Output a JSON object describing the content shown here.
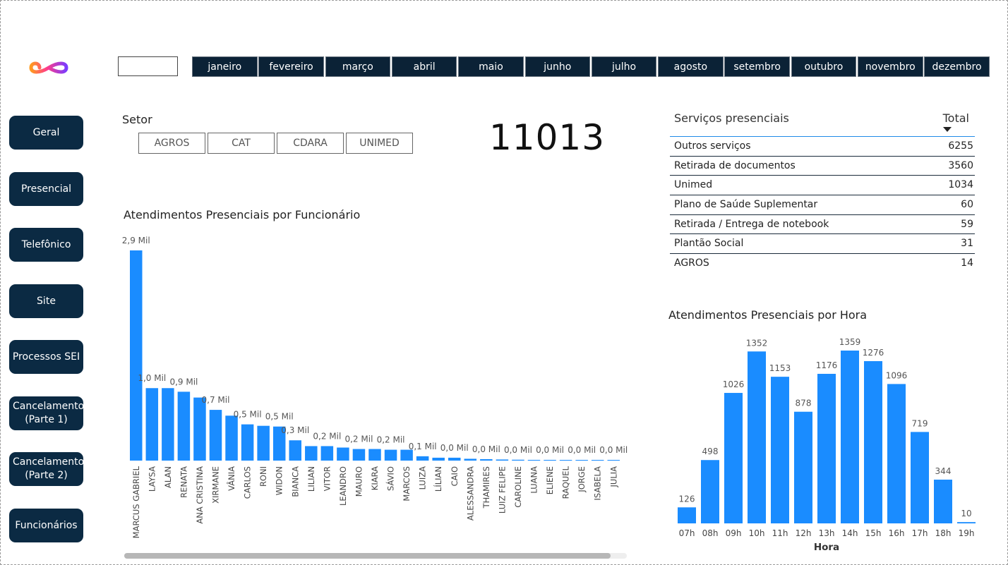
{
  "months": [
    "janeiro",
    "fevereiro",
    "março",
    "abril",
    "maio",
    "junho",
    "julho",
    "agosto",
    "setembro",
    "outubro",
    "novembro",
    "dezembro"
  ],
  "nav": [
    {
      "label": "Geral",
      "name": "nav-geral"
    },
    {
      "label": "Presencial",
      "name": "nav-presencial"
    },
    {
      "label": "Telefônico",
      "name": "nav-telefonico"
    },
    {
      "label": "Site",
      "name": "nav-site"
    },
    {
      "label": "Processos SEI",
      "name": "nav-processos-sei"
    },
    {
      "label": "Cancelamentos (Parte 1)",
      "name": "nav-cancelamentos-parte-1"
    },
    {
      "label": "Cancelamentos (Parte 2)",
      "name": "nav-cancelamentos-parte-2"
    },
    {
      "label": "Funcionários",
      "name": "nav-funcionarios"
    }
  ],
  "setor": {
    "title": "Setor",
    "options": [
      "AGROS",
      "CAT",
      "CDARA",
      "UNIMED"
    ]
  },
  "kpi": {
    "value": "11013"
  },
  "table": {
    "header_label": "Serviços presenciais",
    "header_total": "Total",
    "rows": [
      {
        "label": "Outros serviços",
        "value": "6255"
      },
      {
        "label": "Retirada de documentos",
        "value": "3560"
      },
      {
        "label": "Unimed",
        "value": "1034"
      },
      {
        "label": "Plano de Saúde Suplementar",
        "value": "60"
      },
      {
        "label": "Retirada / Entrega de notebook",
        "value": "59"
      },
      {
        "label": "Plantão Social",
        "value": "31"
      },
      {
        "label": "AGROS",
        "value": "14"
      }
    ]
  },
  "chart_data": [
    {
      "type": "bar",
      "title": "Atendimentos Presenciais por Funcionário",
      "categories": [
        "MARCUS GABRIEL",
        "LAYSA",
        "ALAN",
        "RENATA",
        "ANA CRISTINA",
        "XIRMANE",
        "VÂNIA",
        "CARLOS",
        "RONI",
        "WIDON",
        "BIANCA",
        "LILIAN",
        "VITOR",
        "LEANDRO",
        "MAURO",
        "KIARA",
        "SÁVIO",
        "MARCOS",
        "LUIZA",
        "LÍLIAN",
        "CAIO",
        "ALESSANDRA",
        "THAMIRES",
        "LUIZ FELIPE",
        "CAROLINE",
        "LUANA",
        "ELIENE",
        "RAQUEL",
        "JORGE",
        "ISABELA",
        "JULIA"
      ],
      "values": [
        2.9,
        1.0,
        1.0,
        0.95,
        0.87,
        0.7,
        0.62,
        0.5,
        0.48,
        0.47,
        0.28,
        0.2,
        0.2,
        0.18,
        0.16,
        0.16,
        0.15,
        0.15,
        0.06,
        0.04,
        0.04,
        0.025,
        0.02,
        0.015,
        0.012,
        0.01,
        0.01,
        0.008,
        0.007,
        0.005,
        0.004
      ],
      "value_labels": [
        "2,9 Mil",
        "1,0 Mil",
        "",
        "0,9 Mil",
        "",
        "0,7 Mil",
        "",
        "0,5 Mil",
        "",
        "0,5 Mil",
        "0,3 Mil",
        "",
        "0,2 Mil",
        "",
        "0,2 Mil",
        "",
        "0,2 Mil",
        "",
        "0,1 Mil",
        "",
        "0,0 Mil",
        "",
        "0,0 Mil",
        "",
        "0,0 Mil",
        "",
        "0,0 Mil",
        "",
        "0,0 Mil",
        "",
        "0,0 Mil"
      ],
      "unit": "Mil",
      "ylim": [
        0,
        2.9
      ],
      "color": "#1a8cff"
    },
    {
      "type": "bar",
      "title": "Atendimentos Presenciais por Hora",
      "xlabel": "Hora",
      "categories": [
        "07h",
        "08h",
        "09h",
        "10h",
        "11h",
        "12h",
        "13h",
        "14h",
        "15h",
        "16h",
        "17h",
        "18h",
        "19h"
      ],
      "values": [
        126,
        498,
        1026,
        1352,
        1153,
        878,
        1176,
        1359,
        1276,
        1096,
        719,
        344,
        10
      ],
      "ylim": [
        0,
        1359
      ],
      "color": "#1a8cff"
    }
  ]
}
